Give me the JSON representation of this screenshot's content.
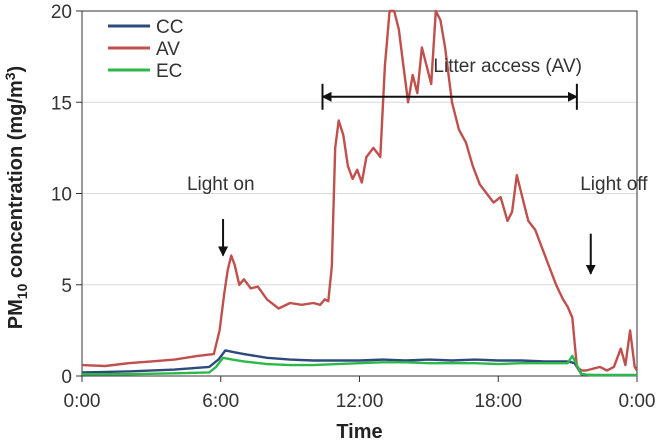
{
  "chart_data": {
    "type": "line",
    "xlabel": "Time",
    "ylabel_main": "PM",
    "ylabel_sub": "10",
    "ylabel_rest": " concentration (mg/m",
    "ylabel_sup": "3",
    "ylabel_end": ")",
    "ylim": [
      0,
      20
    ],
    "xlim": [
      0,
      24
    ],
    "y_ticks": [
      0,
      5,
      10,
      15,
      20
    ],
    "x_ticks": [
      {
        "value": 0,
        "label": "0:00"
      },
      {
        "value": 6,
        "label": "6:00"
      },
      {
        "value": 12,
        "label": "12:00"
      },
      {
        "value": 18,
        "label": "18:00"
      },
      {
        "value": 24,
        "label": "0:00"
      }
    ],
    "grid": "horizontal",
    "legend": "top-left",
    "series": [
      {
        "name": "CC",
        "color": "#2E4A7D",
        "x": [
          0,
          2,
          4,
          5.5,
          5.9,
          6.2,
          6.6,
          7,
          8,
          9,
          10,
          11,
          12,
          13,
          14,
          15,
          16,
          17,
          18,
          19,
          20,
          21,
          21.3,
          21.6,
          22,
          24
        ],
        "y": [
          0.2,
          0.25,
          0.35,
          0.5,
          0.9,
          1.4,
          1.3,
          1.2,
          1.0,
          0.9,
          0.85,
          0.85,
          0.85,
          0.9,
          0.85,
          0.9,
          0.85,
          0.9,
          0.85,
          0.85,
          0.8,
          0.8,
          0.7,
          0.1,
          0.05,
          0.05
        ]
      },
      {
        "name": "AV",
        "color": "#C0504D",
        "x": [
          0,
          1,
          2,
          3,
          4,
          5,
          5.7,
          5.95,
          6.15,
          6.3,
          6.45,
          6.6,
          6.8,
          7,
          7.3,
          7.6,
          8,
          8.5,
          9,
          9.5,
          10,
          10.3,
          10.5,
          10.65,
          10.8,
          10.95,
          11.1,
          11.3,
          11.5,
          11.7,
          11.9,
          12.1,
          12.3,
          12.6,
          12.9,
          13.1,
          13.3,
          13.5,
          13.7,
          13.9,
          14.1,
          14.3,
          14.5,
          14.7,
          14.9,
          15.1,
          15.3,
          15.5,
          15.7,
          16,
          16.3,
          16.6,
          16.9,
          17.2,
          17.5,
          17.8,
          18.1,
          18.4,
          18.6,
          18.8,
          19,
          19.3,
          19.6,
          19.9,
          20.2,
          20.5,
          20.8,
          21,
          21.2,
          21.4,
          21.6,
          21.8,
          22.1,
          22.4,
          22.7,
          23,
          23.3,
          23.5,
          23.7,
          23.9,
          24
        ],
        "y": [
          0.6,
          0.55,
          0.7,
          0.8,
          0.9,
          1.1,
          1.2,
          2.5,
          4.5,
          5.8,
          6.6,
          6.1,
          5.0,
          5.3,
          4.8,
          4.9,
          4.2,
          3.7,
          4.0,
          3.9,
          4.0,
          3.9,
          4.2,
          4.1,
          6.0,
          12.5,
          14.0,
          13.2,
          11.5,
          10.8,
          11.3,
          10.6,
          12.0,
          12.5,
          12.0,
          17.0,
          20.0,
          20.0,
          19.0,
          17.0,
          15.0,
          16.5,
          15.5,
          18.0,
          17.0,
          16.0,
          20.0,
          19.5,
          18.0,
          15.0,
          13.5,
          12.8,
          11.5,
          10.5,
          10.0,
          9.5,
          9.8,
          8.5,
          9.0,
          11.0,
          10.0,
          8.5,
          8.0,
          7.0,
          6.0,
          5.0,
          4.2,
          3.8,
          3.2,
          0.5,
          0.3,
          0.3,
          0.4,
          0.5,
          0.3,
          0.5,
          1.5,
          0.6,
          2.5,
          0.5,
          0.3
        ]
      },
      {
        "name": "EC",
        "color": "#2DB84A",
        "x": [
          0,
          2,
          4,
          5.5,
          5.8,
          6.1,
          6.5,
          7,
          8,
          9,
          10,
          11,
          12,
          13,
          14,
          15,
          16,
          17,
          18,
          19,
          20,
          21,
          21.2,
          21.4,
          21.6,
          22,
          24
        ],
        "y": [
          0.1,
          0.1,
          0.15,
          0.2,
          0.5,
          1.0,
          0.9,
          0.8,
          0.65,
          0.6,
          0.6,
          0.65,
          0.7,
          0.75,
          0.75,
          0.7,
          0.7,
          0.7,
          0.65,
          0.7,
          0.7,
          0.7,
          1.1,
          0.6,
          0.1,
          0.05,
          0.05
        ]
      }
    ],
    "annotations": [
      {
        "text": "Light on",
        "label_x": 6.0,
        "label_y": 10.2,
        "arrow_x": 6.1,
        "arrow_from": 8.6,
        "arrow_to": 6.6
      },
      {
        "text": "Light off",
        "label_x": 23.0,
        "label_y": 10.2,
        "arrow_x": 22.0,
        "arrow_from": 7.8,
        "arrow_to": 5.6
      }
    ],
    "range_annotation": {
      "text": "Litter access (AV)",
      "x_start": 10.4,
      "x_end": 21.4,
      "y": 15.3
    }
  }
}
